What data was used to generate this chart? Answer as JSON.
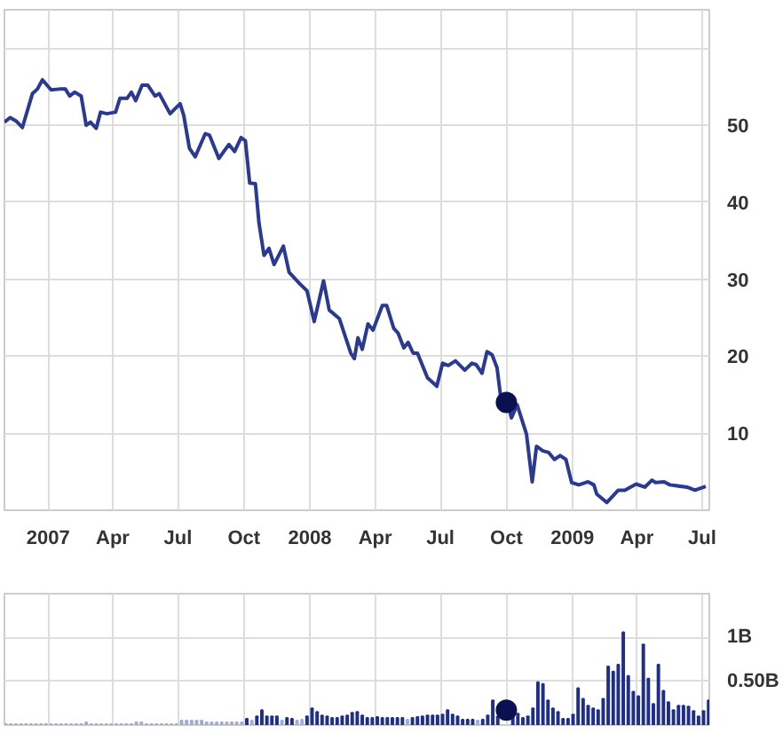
{
  "chart_data": [
    {
      "type": "line",
      "xlim": [
        "2006-11-01",
        "2009-07-11"
      ],
      "ylim": [
        0,
        65
      ],
      "xticks": [
        {
          "value": "2007-01-01",
          "label": "2007"
        },
        {
          "value": "2007-04-01",
          "label": "Apr"
        },
        {
          "value": "2007-07-01",
          "label": "Jul"
        },
        {
          "value": "2007-10-01",
          "label": "Oct"
        },
        {
          "value": "2008-01-01",
          "label": "2008"
        },
        {
          "value": "2008-04-01",
          "label": "Apr"
        },
        {
          "value": "2008-07-01",
          "label": "Jul"
        },
        {
          "value": "2008-10-01",
          "label": "Oct"
        },
        {
          "value": "2009-01-01",
          "label": "2009"
        },
        {
          "value": "2009-04-01",
          "label": "Apr"
        },
        {
          "value": "2009-07-01",
          "label": "Jul"
        }
      ],
      "yticks": [
        10,
        20,
        30,
        40,
        50,
        {
          "value": 60,
          "label": null
        }
      ],
      "grid": true,
      "series": [
        {
          "color": "#2a3a93",
          "x": [
            "2006-11-01",
            "2006-11-09",
            "2006-11-18",
            "2006-11-26",
            "2006-12-10",
            "2006-12-17",
            "2006-12-24",
            "2007-01-05",
            "2007-01-17",
            "2007-01-25",
            "2007-01-31",
            "2007-02-07",
            "2007-02-16",
            "2007-02-23",
            "2007-03-01",
            "2007-03-09",
            "2007-03-15",
            "2007-03-24",
            "2007-04-05",
            "2007-04-11",
            "2007-04-21",
            "2007-04-27",
            "2007-05-03",
            "2007-05-12",
            "2007-05-20",
            "2007-05-30",
            "2007-06-05",
            "2007-06-20",
            "2007-07-04",
            "2007-07-09",
            "2007-07-17",
            "2007-07-25",
            "2007-08-08",
            "2007-08-14",
            "2007-08-27",
            "2007-09-10",
            "2007-09-18",
            "2007-09-27",
            "2007-10-03",
            "2007-10-09",
            "2007-10-17",
            "2007-10-22",
            "2007-10-29",
            "2007-11-05",
            "2007-11-12",
            "2007-11-25",
            "2007-12-03",
            "2007-12-18",
            "2007-12-28",
            "2008-01-07",
            "2008-01-20",
            "2008-01-28",
            "2008-02-11",
            "2008-02-27",
            "2008-03-03",
            "2008-03-08",
            "2008-03-14",
            "2008-03-22",
            "2008-03-29",
            "2008-04-11",
            "2008-04-17",
            "2008-04-27",
            "2008-05-03",
            "2008-05-11",
            "2008-05-17",
            "2008-05-24",
            "2008-05-30",
            "2008-06-13",
            "2008-06-26",
            "2008-07-04",
            "2008-07-12",
            "2008-07-22",
            "2008-08-04",
            "2008-08-14",
            "2008-08-20",
            "2008-08-28",
            "2008-09-04",
            "2008-09-11",
            "2008-09-18",
            "2008-09-24",
            "2008-10-02",
            "2008-10-08",
            "2008-10-16",
            "2008-10-29",
            "2008-11-06",
            "2008-11-12",
            "2008-11-21",
            "2008-11-29",
            "2008-12-07",
            "2008-12-15",
            "2008-12-23",
            "2008-12-31",
            "2009-01-10",
            "2009-01-23",
            "2009-01-31",
            "2009-02-04",
            "2009-02-18",
            "2009-03-06",
            "2009-03-15",
            "2009-03-31",
            "2009-04-12",
            "2009-04-22",
            "2009-04-27",
            "2009-05-09",
            "2009-05-17",
            "2009-06-10",
            "2009-06-21",
            "2009-07-06"
          ],
          "values": [
            50.4,
            51.0,
            50.5,
            49.7,
            54.1,
            54.7,
            55.9,
            54.6,
            54.7,
            54.7,
            53.8,
            54.3,
            53.8,
            50.0,
            50.4,
            49.6,
            51.7,
            51.5,
            51.7,
            53.5,
            53.5,
            54.3,
            53.2,
            55.2,
            55.2,
            53.8,
            54.1,
            51.5,
            52.8,
            51.3,
            47.0,
            45.9,
            48.9,
            48.7,
            45.7,
            47.5,
            46.6,
            48.4,
            48.0,
            42.5,
            42.4,
            37.3,
            33.1,
            34.0,
            31.9,
            34.3,
            30.9,
            29.4,
            28.5,
            24.5,
            29.8,
            26.0,
            24.9,
            20.4,
            19.7,
            22.4,
            20.9,
            24.2,
            23.4,
            26.6,
            26.6,
            23.6,
            23.0,
            21.1,
            21.8,
            20.4,
            20.4,
            17.2,
            16.1,
            19.1,
            18.8,
            19.4,
            18.2,
            19.1,
            18.9,
            17.8,
            20.6,
            20.2,
            18.5,
            14.0,
            14.2,
            12.0,
            13.7,
            9.9,
            3.7,
            8.3,
            7.7,
            7.5,
            6.6,
            7.1,
            6.6,
            3.6,
            3.3,
            3.7,
            3.3,
            2.1,
            1.0,
            2.6,
            2.6,
            3.4,
            3.0,
            3.9,
            3.6,
            3.7,
            3.3,
            3.0,
            2.6,
            3.1
          ]
        },
        {
          "type": "scatter",
          "color": "#0a1050",
          "marker": "circle",
          "x": [
            "2008-10-01"
          ],
          "values": [
            14.0
          ]
        }
      ]
    },
    {
      "type": "bar",
      "xlim": [
        "2006-11-01",
        "2009-07-11"
      ],
      "ylim": [
        0,
        1.5
      ],
      "tick_labels": "y",
      "xticks": [
        {
          "value": "2007-01-01",
          "label": null
        },
        {
          "value": "2007-04-01",
          "label": null
        },
        {
          "value": "2007-07-01",
          "label": null
        },
        {
          "value": "2007-10-01",
          "label": null
        },
        {
          "value": "2008-01-01",
          "label": null
        },
        {
          "value": "2008-04-01",
          "label": null
        },
        {
          "value": "2008-07-01",
          "label": null
        },
        {
          "value": "2008-10-01",
          "label": null
        },
        {
          "value": "2009-01-01",
          "label": null
        },
        {
          "value": "2009-04-01",
          "label": null
        },
        {
          "value": "2009-07-01",
          "label": null
        }
      ],
      "yticks": [
        {
          "value": 0.5,
          "label": "0.50B"
        },
        {
          "value": 1,
          "label": "1B"
        },
        {
          "value": 1.5,
          "label": null
        }
      ],
      "grid": true,
      "series": [
        {
          "color": "#a3aad8",
          "x": [
            "2006-11-03",
            "2006-11-10",
            "2006-11-17",
            "2006-11-24",
            "2006-12-01",
            "2006-12-08",
            "2006-12-15",
            "2006-12-22",
            "2006-12-29",
            "2007-01-05",
            "2007-01-12",
            "2007-01-19",
            "2007-01-26",
            "2007-02-02",
            "2007-02-09",
            "2007-02-16",
            "2007-02-23",
            "2007-03-02",
            "2007-03-09",
            "2007-03-16",
            "2007-03-23",
            "2007-03-30",
            "2007-04-06",
            "2007-04-13",
            "2007-04-20",
            "2007-04-27",
            "2007-05-04",
            "2007-05-11",
            "2007-05-18",
            "2007-05-25",
            "2007-06-01",
            "2007-06-08",
            "2007-06-15",
            "2007-06-22",
            "2007-06-29",
            "2007-07-06",
            "2007-07-13",
            "2007-07-20",
            "2007-07-27",
            "2007-08-03",
            "2007-08-10",
            "2007-08-17",
            "2007-08-24",
            "2007-08-31",
            "2007-09-07",
            "2007-09-14",
            "2007-09-21",
            "2007-09-28",
            "2007-10-12",
            "2007-11-23",
            "2007-12-14",
            "2007-12-21",
            "2008-05-16",
            "2008-08-22"
          ],
          "values": [
            0.01,
            0.01,
            0.01,
            0.01,
            0.01,
            0.01,
            0.01,
            0.01,
            0.01,
            0.01,
            0.01,
            0.01,
            0.01,
            0.01,
            0.01,
            0.01,
            0.03,
            0.01,
            0.01,
            0.01,
            0.01,
            0.01,
            0.01,
            0.01,
            0.01,
            0.01,
            0.03,
            0.03,
            0.01,
            0.01,
            0.01,
            0.01,
            0.01,
            0.01,
            0.01,
            0.05,
            0.05,
            0.05,
            0.05,
            0.05,
            0.03,
            0.03,
            0.03,
            0.03,
            0.03,
            0.03,
            0.03,
            0.03,
            0.05,
            0.05,
            0.05,
            0.06,
            0.06,
            0.05
          ]
        },
        {
          "color": "#1f2e8a",
          "x": [
            "2007-10-05",
            "2007-10-19",
            "2007-10-26",
            "2007-11-02",
            "2007-11-09",
            "2007-11-16",
            "2007-11-30",
            "2007-12-07",
            "2007-12-28",
            "2008-01-04",
            "2008-01-11",
            "2008-01-18",
            "2008-01-25",
            "2008-02-01",
            "2008-02-08",
            "2008-02-15",
            "2008-02-22",
            "2008-02-29",
            "2008-03-07",
            "2008-03-14",
            "2008-03-21",
            "2008-03-28",
            "2008-04-04",
            "2008-04-11",
            "2008-04-18",
            "2008-04-25",
            "2008-05-02",
            "2008-05-09",
            "2008-05-23",
            "2008-05-30",
            "2008-06-06",
            "2008-06-13",
            "2008-06-20",
            "2008-06-27",
            "2008-07-04",
            "2008-07-11",
            "2008-07-18",
            "2008-07-25",
            "2008-08-01",
            "2008-08-08",
            "2008-08-15",
            "2008-08-29",
            "2008-09-05",
            "2008-09-12",
            "2008-09-19",
            "2008-09-26",
            "2008-10-03",
            "2008-10-10",
            "2008-10-17",
            "2008-10-24",
            "2008-10-31",
            "2008-11-07",
            "2008-11-14",
            "2008-11-21",
            "2008-11-28",
            "2008-12-05",
            "2008-12-12",
            "2008-12-19",
            "2008-12-26",
            "2009-01-02",
            "2009-01-09",
            "2009-01-16",
            "2009-01-23",
            "2009-01-30",
            "2009-02-06",
            "2009-02-13",
            "2009-02-20",
            "2009-02-27",
            "2009-03-06",
            "2009-03-13",
            "2009-03-20",
            "2009-03-27",
            "2009-04-03",
            "2009-04-10",
            "2009-04-17",
            "2009-04-24",
            "2009-05-01",
            "2009-05-08",
            "2009-05-15",
            "2009-05-22",
            "2009-05-29",
            "2009-06-05",
            "2009-06-12",
            "2009-06-19",
            "2009-06-26",
            "2009-07-03",
            "2009-07-10"
          ],
          "values": [
            0.07,
            0.1,
            0.17,
            0.1,
            0.1,
            0.1,
            0.08,
            0.07,
            0.1,
            0.19,
            0.15,
            0.11,
            0.1,
            0.08,
            0.08,
            0.1,
            0.11,
            0.14,
            0.15,
            0.11,
            0.08,
            0.08,
            0.09,
            0.08,
            0.08,
            0.08,
            0.08,
            0.08,
            0.08,
            0.09,
            0.1,
            0.11,
            0.11,
            0.11,
            0.12,
            0.17,
            0.12,
            0.1,
            0.06,
            0.06,
            0.06,
            0.06,
            0.11,
            0.28,
            0.1,
            null,
            null,
            0.12,
            0.13,
            0.08,
            0.1,
            0.19,
            0.49,
            0.47,
            0.28,
            0.19,
            0.15,
            0.07,
            0.07,
            0.12,
            0.42,
            0.3,
            0.22,
            0.19,
            0.17,
            0.3,
            0.67,
            0.61,
            0.69,
            1.06,
            0.56,
            0.38,
            0.33,
            0.92,
            0.53,
            0.24,
            0.69,
            0.39,
            0.26,
            0.17,
            0.22,
            0.22,
            0.21,
            0.16,
            0.1,
            0.16,
            0.28
          ]
        },
        {
          "type": "scatter",
          "color": "#0a1050",
          "marker": "circle",
          "x": [
            "2008-10-01"
          ],
          "values": [
            0.17
          ]
        }
      ]
    }
  ]
}
